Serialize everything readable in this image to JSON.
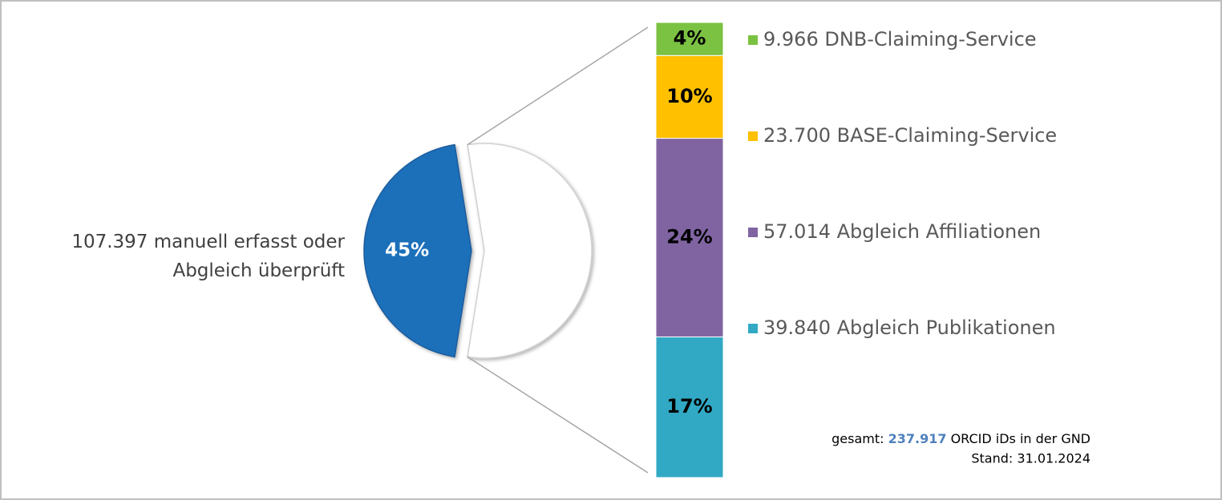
{
  "chart_data": {
    "type": "bar-of-pie",
    "pie": {
      "categories": [
        "107.397 manuell erfasst oder Abgleich überprüft",
        null
      ],
      "values": [
        45,
        55
      ],
      "value_labels": [
        "45%",
        null
      ],
      "colors": [
        "#1f6fba",
        "#ffffff"
      ]
    },
    "bar": {
      "categories": [
        "9.966 DNB-Claiming-Service",
        "23.700 BASE-Claiming-Service",
        "57.014 Abgleich Affiliationen",
        "39.840 Abgleich Publikationen"
      ],
      "values": [
        4,
        10,
        24,
        17
      ],
      "value_labels": [
        "4%",
        "10%",
        "24%",
        "17%"
      ],
      "colors": [
        "#7cc242",
        "#ffc000",
        "#8064a2",
        "#31a9c4"
      ]
    },
    "footer": {
      "prefix": "gesamt:",
      "total": "237.917",
      "suffix": "ORCID iDs in der GND",
      "date": "Stand: 31.01.2024"
    }
  }
}
